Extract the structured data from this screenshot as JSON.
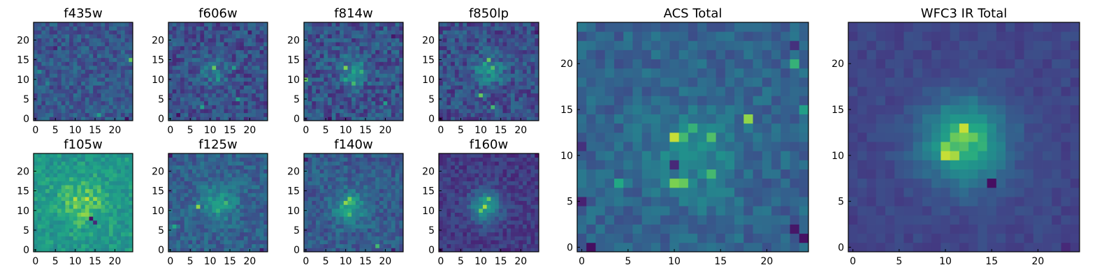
{
  "chart_data": [
    {
      "type": "heatmap",
      "title": "f435w",
      "xticks": [
        0,
        5,
        10,
        15,
        20
      ],
      "yticks": [
        0,
        5,
        10,
        15,
        20
      ],
      "xlim": [
        -0.5,
        24.5
      ],
      "ylim": [
        -0.5,
        24.5
      ],
      "grid_size": 25,
      "colormap": "viridis",
      "features": {
        "background": 0.34,
        "noise": 0.14,
        "source": null,
        "hot_pixels": [
          [
            24,
            15,
            0.85
          ],
          [
            16,
            1,
            0.7
          ],
          [
            1,
            12,
            0.6
          ],
          [
            3,
            9,
            0.55
          ]
        ],
        "cold_pixels": [
          [
            23,
            0,
            0.05
          ],
          [
            5,
            18,
            0.12
          ]
        ]
      }
    },
    {
      "type": "heatmap",
      "title": "f606w",
      "xticks": [
        0,
        5,
        10,
        15,
        20
      ],
      "yticks": [
        0,
        5,
        10,
        15,
        20
      ],
      "xlim": [
        -0.5,
        24.5
      ],
      "ylim": [
        -0.5,
        24.5
      ],
      "grid_size": 25,
      "colormap": "viridis",
      "features": {
        "background": 0.3,
        "noise": 0.16,
        "source": {
          "x": 11,
          "y": 12,
          "amp": 0.2,
          "sigma": 2.5
        },
        "hot_pixels": [
          [
            11,
            13,
            0.85
          ],
          [
            16,
            13,
            0.7
          ],
          [
            8,
            3,
            0.72
          ],
          [
            17,
            5,
            0.7
          ],
          [
            12,
            10,
            0.68
          ]
        ],
        "cold_pixels": [
          [
            2,
            1,
            0.05
          ],
          [
            20,
            22,
            0.1
          ]
        ]
      }
    },
    {
      "type": "heatmap",
      "title": "f814w",
      "xticks": [
        0,
        5,
        10,
        15,
        20
      ],
      "yticks": [
        0,
        5,
        10,
        15,
        20
      ],
      "xlim": [
        -0.5,
        24.5
      ],
      "ylim": [
        -0.5,
        24.5
      ],
      "grid_size": 25,
      "colormap": "viridis",
      "features": {
        "background": 0.32,
        "noise": 0.17,
        "source": {
          "x": 12,
          "y": 12,
          "amp": 0.28,
          "sigma": 2.5
        },
        "hot_pixels": [
          [
            10,
            13,
            0.88
          ],
          [
            14,
            12,
            0.78
          ],
          [
            12,
            9,
            0.8
          ],
          [
            0,
            10,
            0.85
          ],
          [
            10,
            10,
            0.75
          ],
          [
            20,
            4,
            0.7
          ]
        ],
        "cold_pixels": [
          [
            6,
            0,
            0.05
          ],
          [
            22,
            21,
            0.08
          ]
        ]
      }
    },
    {
      "type": "heatmap",
      "title": "f850lp",
      "xticks": [
        0,
        5,
        10,
        15,
        20
      ],
      "yticks": [
        0,
        5,
        10,
        15,
        20
      ],
      "xlim": [
        -0.5,
        24.5
      ],
      "ylim": [
        -0.5,
        24.5
      ],
      "grid_size": 25,
      "colormap": "viridis",
      "features": {
        "background": 0.3,
        "noise": 0.16,
        "source": {
          "x": 12,
          "y": 12,
          "amp": 0.3,
          "sigma": 2.7
        },
        "hot_pixels": [
          [
            12,
            15,
            0.85
          ],
          [
            13,
            13,
            0.82
          ],
          [
            10,
            6,
            0.85
          ],
          [
            13,
            3,
            0.8
          ],
          [
            11,
            14,
            0.75
          ]
        ],
        "cold_pixels": [
          [
            0,
            0,
            0.05
          ],
          [
            24,
            22,
            0.08
          ]
        ]
      }
    },
    {
      "type": "heatmap",
      "title": "f105w",
      "xticks": [
        0,
        5,
        10,
        15,
        20
      ],
      "yticks": [
        0,
        5,
        10,
        15,
        20
      ],
      "xlim": [
        -0.5,
        24.5
      ],
      "ylim": [
        -0.5,
        24.5
      ],
      "grid_size": 25,
      "colormap": "viridis",
      "features": {
        "background": 0.66,
        "noise": 0.11,
        "source": {
          "x": 12,
          "y": 12,
          "amp": 0.2,
          "sigma": 4
        },
        "hot_pixels": [
          [
            13,
            13,
            0.95
          ],
          [
            10,
            11,
            0.9
          ]
        ],
        "cold_pixels": [
          [
            14,
            8,
            0.05
          ],
          [
            15,
            7,
            0.15
          ]
        ]
      }
    },
    {
      "type": "heatmap",
      "title": "f125w",
      "xticks": [
        0,
        5,
        10,
        15,
        20
      ],
      "yticks": [
        0,
        5,
        10,
        15,
        20
      ],
      "xlim": [
        -0.5,
        24.5
      ],
      "ylim": [
        -0.5,
        24.5
      ],
      "grid_size": 25,
      "colormap": "viridis",
      "features": {
        "background": 0.38,
        "noise": 0.13,
        "source": {
          "x": 12,
          "y": 12,
          "amp": 0.28,
          "sigma": 3.2
        },
        "hot_pixels": [
          [
            7,
            11,
            0.9
          ],
          [
            14,
            12,
            0.8
          ],
          [
            12,
            10,
            0.78
          ],
          [
            1,
            6,
            0.75
          ]
        ],
        "cold_pixels": [
          [
            0,
            24,
            0.08
          ],
          [
            23,
            0,
            0.1
          ]
        ]
      }
    },
    {
      "type": "heatmap",
      "title": "f140w",
      "xticks": [
        0,
        5,
        10,
        15,
        20
      ],
      "yticks": [
        0,
        5,
        10,
        15,
        20
      ],
      "xlim": [
        -0.5,
        24.5
      ],
      "ylim": [
        -0.5,
        24.5
      ],
      "grid_size": 25,
      "colormap": "viridis",
      "features": {
        "background": 0.36,
        "noise": 0.13,
        "source": {
          "x": 11,
          "y": 11,
          "amp": 0.35,
          "sigma": 2.8
        },
        "hot_pixels": [
          [
            10,
            12,
            0.9
          ],
          [
            11,
            13,
            0.88
          ],
          [
            11,
            9,
            0.82
          ],
          [
            18,
            1,
            0.8
          ]
        ],
        "cold_pixels": [
          [
            0,
            23,
            0.08
          ],
          [
            22,
            0,
            0.1
          ]
        ]
      }
    },
    {
      "type": "heatmap",
      "title": "f160w",
      "xticks": [
        0,
        5,
        10,
        15,
        20
      ],
      "yticks": [
        0,
        5,
        10,
        15,
        20
      ],
      "xlim": [
        -0.5,
        24.5
      ],
      "ylim": [
        -0.5,
        24.5
      ],
      "grid_size": 25,
      "colormap": "viridis",
      "features": {
        "background": 0.22,
        "noise": 0.1,
        "source": {
          "x": 11,
          "y": 11,
          "amp": 0.5,
          "sigma": 2.6
        },
        "hot_pixels": [
          [
            11,
            11,
            0.92
          ],
          [
            12,
            13,
            0.85
          ],
          [
            10,
            10,
            0.85
          ]
        ],
        "cold_pixels": [
          [
            0,
            0,
            0.05
          ],
          [
            24,
            24,
            0.05
          ]
        ]
      }
    },
    {
      "type": "heatmap",
      "title": "ACS Total",
      "xticks": [
        0,
        5,
        10,
        15,
        20
      ],
      "yticks": [
        0,
        5,
        10,
        15,
        20
      ],
      "xlim": [
        -0.5,
        24.5
      ],
      "ylim": [
        -0.5,
        24.5
      ],
      "grid_size": 25,
      "colormap": "viridis",
      "features": {
        "background": 0.4,
        "noise": 0.11,
        "source": {
          "x": 12,
          "y": 10,
          "amp": 0.18,
          "sigma": 3.5
        },
        "hot_pixels": [
          [
            10,
            12,
            0.95
          ],
          [
            11,
            12,
            0.8
          ],
          [
            14,
            12,
            0.82
          ],
          [
            18,
            14,
            0.9
          ],
          [
            12,
            13,
            0.78
          ],
          [
            10,
            7,
            0.88
          ],
          [
            11,
            7,
            0.85
          ],
          [
            14,
            8,
            0.8
          ],
          [
            4,
            7,
            0.75
          ],
          [
            23,
            20,
            0.78
          ],
          [
            24,
            15,
            0.7
          ]
        ],
        "cold_pixels": [
          [
            1,
            0,
            0.05
          ],
          [
            23,
            2,
            0.08
          ],
          [
            24,
            1,
            0.06
          ],
          [
            0,
            5,
            0.12
          ],
          [
            10,
            9,
            0.15
          ],
          [
            23,
            22,
            0.18
          ],
          [
            0,
            11,
            0.18
          ]
        ]
      }
    },
    {
      "type": "heatmap",
      "title": "WFC3 IR Total",
      "xticks": [
        0,
        5,
        10,
        15,
        20
      ],
      "yticks": [
        0,
        5,
        10,
        15,
        20
      ],
      "xlim": [
        -0.5,
        24.5
      ],
      "ylim": [
        -0.5,
        24.5
      ],
      "grid_size": 25,
      "colormap": "viridis",
      "features": {
        "background": 0.26,
        "noise": 0.05,
        "source": {
          "x": 12,
          "y": 11.5,
          "amp": 0.58,
          "sigma": 3.2
        },
        "hot_pixels": [
          [
            12,
            13,
            0.95
          ],
          [
            10,
            10,
            0.95
          ],
          [
            11,
            10,
            0.92
          ],
          [
            10,
            11,
            0.88
          ],
          [
            13,
            12,
            0.85
          ]
        ],
        "cold_pixels": [
          [
            15,
            7,
            0.05
          ],
          [
            23,
            0,
            0.15
          ],
          [
            0,
            3,
            0.2
          ]
        ]
      }
    }
  ]
}
